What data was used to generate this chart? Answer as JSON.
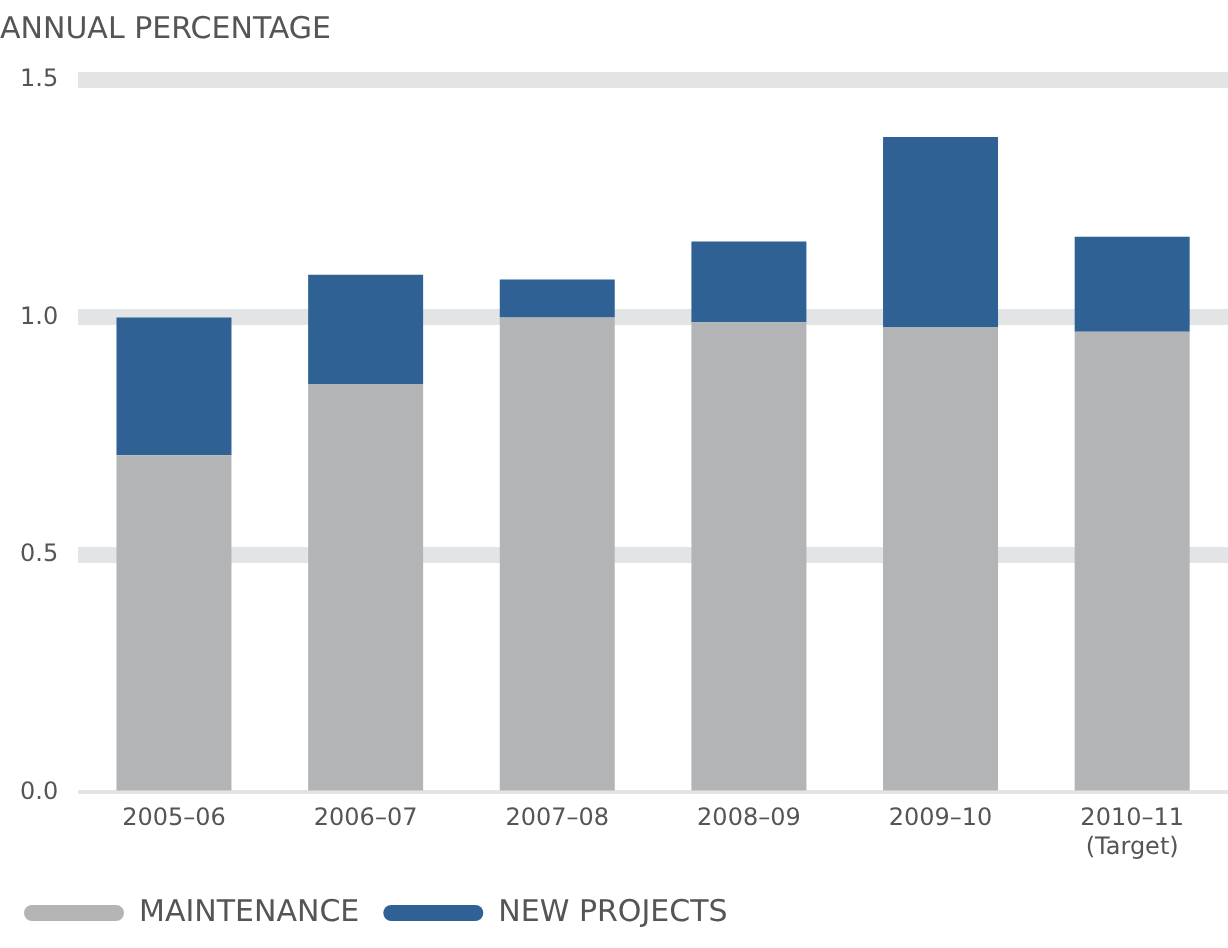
{
  "chart_data": {
    "type": "bar",
    "title": "ANNUAL PERCENTAGE",
    "stacked": true,
    "categories": [
      "2005–06",
      "2006–07",
      "2007–08",
      "2008–09",
      "2009–10",
      "2010–11\n(Target)"
    ],
    "series": [
      {
        "name": "MAINTENANCE",
        "color": "#b3b4b6",
        "values": [
          0.71,
          0.86,
          1.0,
          0.99,
          0.98,
          0.97
        ]
      },
      {
        "name": "NEW PROJECTS",
        "color": "#2f6194",
        "values": [
          0.29,
          0.23,
          0.08,
          0.17,
          0.4,
          0.2
        ]
      }
    ],
    "ylim": [
      0,
      1.5
    ],
    "yticks": [
      {
        "value": 0,
        "label": "0.0"
      },
      {
        "value": 0.5,
        "label": "0.5"
      },
      {
        "value": 1,
        "label": "1.0"
      },
      {
        "value": 1.5,
        "label": "1.5"
      }
    ],
    "grid": "y",
    "legend": "bottom left"
  }
}
